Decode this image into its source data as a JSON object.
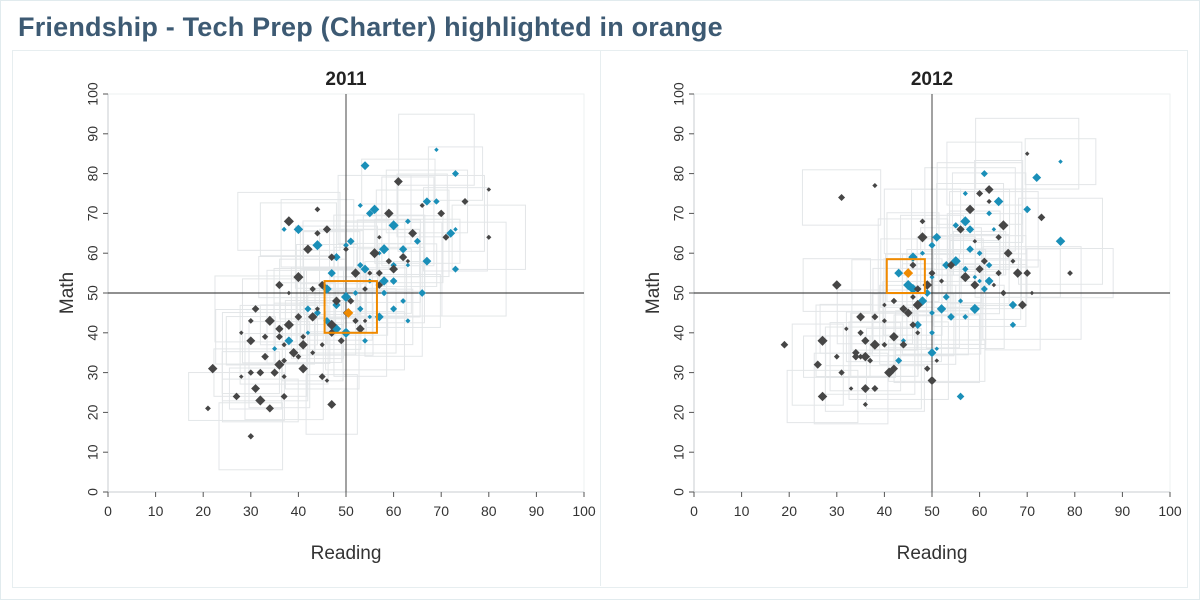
{
  "page": {
    "title": "Friendship - Tech Prep (Charter) highlighted in orange"
  },
  "colors": {
    "highlight": "#f08a00",
    "teal": "#1a8fb8",
    "dark": "#464646",
    "ghost": "#e3e6e8",
    "title": "#3d5a73"
  },
  "chart_data": [
    {
      "type": "scatter",
      "title": "2011",
      "xlabel": "Reading",
      "ylabel": "Math",
      "xlim": [
        0,
        100
      ],
      "ylim": [
        0,
        100
      ],
      "xticks": [
        "0",
        "10",
        "20",
        "30",
        "40",
        "50",
        "60",
        "70",
        "80",
        "90",
        "100"
      ],
      "yticks": [
        "0",
        "10",
        "20",
        "30",
        "40",
        "50",
        "60",
        "70",
        "80",
        "90",
        "100"
      ],
      "reference_lines": {
        "x": 50,
        "y": 50
      },
      "highlight": {
        "name": "Friendship - Tech Prep (Charter)",
        "point": [
          50.5,
          45
        ],
        "box": {
          "x": [
            45.5,
            56.5
          ],
          "y": [
            40,
            53
          ]
        }
      },
      "series": [
        {
          "group": "teal",
          "points": [
            [
              69,
              86
            ],
            [
              54,
              82
            ],
            [
              73,
              80
            ],
            [
              53,
              72
            ],
            [
              56,
              71
            ],
            [
              55,
              70
            ],
            [
              63,
              68
            ],
            [
              60,
              67
            ],
            [
              67,
              73
            ],
            [
              69,
              73
            ],
            [
              73,
              66
            ],
            [
              72,
              65
            ],
            [
              65,
              63
            ],
            [
              37,
              66
            ],
            [
              40,
              66
            ],
            [
              51,
              63
            ],
            [
              50,
              62
            ],
            [
              58,
              61
            ],
            [
              62,
              61
            ],
            [
              60,
              57
            ],
            [
              63,
              57
            ],
            [
              67,
              58
            ],
            [
              73,
              56
            ],
            [
              55,
              53
            ],
            [
              58,
              53
            ],
            [
              60,
              53
            ],
            [
              52,
              50
            ],
            [
              50,
              49
            ],
            [
              48,
              47
            ],
            [
              53,
              46
            ],
            [
              55,
              44
            ],
            [
              57,
              44
            ],
            [
              60,
              46
            ],
            [
              63,
              43
            ],
            [
              48,
              41
            ],
            [
              46,
              43
            ],
            [
              54,
              38
            ],
            [
              50,
              40
            ],
            [
              47,
              55
            ],
            [
              58,
              50
            ],
            [
              42,
              40
            ],
            [
              38,
              38
            ],
            [
              44,
              45
            ],
            [
              35,
              36
            ],
            [
              46,
              51
            ],
            [
              66,
              50
            ],
            [
              62,
              48
            ],
            [
              44,
              62
            ],
            [
              48,
              59
            ],
            [
              53,
              57
            ],
            [
              57,
              60
            ],
            [
              54,
              56
            ],
            [
              42,
              46
            ]
          ]
        },
        {
          "group": "dark",
          "points": [
            [
              80,
              76
            ],
            [
              61,
              78
            ],
            [
              75,
              73
            ],
            [
              66,
              72
            ],
            [
              59,
              70
            ],
            [
              70,
              70
            ],
            [
              44,
              71
            ],
            [
              38,
              68
            ],
            [
              46,
              66
            ],
            [
              44,
              65
            ],
            [
              57,
              64
            ],
            [
              64,
              65
            ],
            [
              71,
              64
            ],
            [
              80,
              64
            ],
            [
              42,
              61
            ],
            [
              47,
              59
            ],
            [
              50,
              61
            ],
            [
              56,
              60
            ],
            [
              62,
              59
            ],
            [
              59,
              58
            ],
            [
              63,
              58
            ],
            [
              60,
              56
            ],
            [
              57,
              55
            ],
            [
              55,
              55
            ],
            [
              52,
              55
            ],
            [
              57,
              52
            ],
            [
              54,
              51
            ],
            [
              40,
              54
            ],
            [
              36,
              52
            ],
            [
              43,
              51
            ],
            [
              38,
              50
            ],
            [
              48,
              48
            ],
            [
              51,
              48
            ],
            [
              44,
              46
            ],
            [
              43,
              44
            ],
            [
              40,
              44
            ],
            [
              41,
              39
            ],
            [
              47,
              42
            ],
            [
              47,
              40
            ],
            [
              52,
              43
            ],
            [
              54,
              43
            ],
            [
              53,
              41
            ],
            [
              49,
              38
            ],
            [
              45,
              37
            ],
            [
              41,
              37
            ],
            [
              31,
              46
            ],
            [
              30,
              43
            ],
            [
              34,
              43
            ],
            [
              36,
              41
            ],
            [
              33,
              39
            ],
            [
              28,
              40
            ],
            [
              30,
              38
            ],
            [
              36,
              39
            ],
            [
              37,
              37
            ],
            [
              39,
              35
            ],
            [
              33,
              34
            ],
            [
              40,
              34
            ],
            [
              36,
              32
            ],
            [
              35,
              30
            ],
            [
              30,
              30
            ],
            [
              28,
              29
            ],
            [
              31,
              26
            ],
            [
              37,
              24
            ],
            [
              37,
              29
            ],
            [
              22,
              31
            ],
            [
              27,
              24
            ],
            [
              21,
              21
            ],
            [
              32,
              23
            ],
            [
              34,
              21
            ],
            [
              30,
              14
            ],
            [
              46,
              28
            ],
            [
              47,
              22
            ],
            [
              45,
              29
            ],
            [
              43,
              35
            ],
            [
              41,
              31
            ],
            [
              32,
              30
            ],
            [
              37,
              33
            ],
            [
              38,
              42
            ],
            [
              45,
              52
            ],
            [
              50,
              45
            ]
          ]
        }
      ]
    },
    {
      "type": "scatter",
      "title": "2012",
      "xlabel": "Reading",
      "ylabel": "Math",
      "xlim": [
        0,
        100
      ],
      "ylim": [
        0,
        100
      ],
      "xticks": [
        "0",
        "10",
        "20",
        "30",
        "40",
        "50",
        "60",
        "70",
        "80",
        "90",
        "100"
      ],
      "yticks": [
        "0",
        "10",
        "20",
        "30",
        "40",
        "50",
        "60",
        "70",
        "80",
        "90",
        "100"
      ],
      "reference_lines": {
        "x": 50,
        "y": 50
      },
      "highlight": {
        "name": "Friendship - Tech Prep (Charter)",
        "point": [
          45,
          55
        ],
        "box": {
          "x": [
            40.5,
            48.5
          ],
          "y": [
            50,
            58.5
          ]
        }
      },
      "series": [
        {
          "group": "teal",
          "points": [
            [
              77,
              83
            ],
            [
              72,
              79
            ],
            [
              61,
              80
            ],
            [
              57,
              75
            ],
            [
              64,
              73
            ],
            [
              70,
              71
            ],
            [
              62,
              70
            ],
            [
              57,
              68
            ],
            [
              58,
              66
            ],
            [
              55,
              67
            ],
            [
              63,
              66
            ],
            [
              51,
              64
            ],
            [
              50,
              62
            ],
            [
              48,
              60
            ],
            [
              46,
              59
            ],
            [
              58,
              61
            ],
            [
              60,
              60
            ],
            [
              55,
              58
            ],
            [
              53,
              57
            ],
            [
              57,
              56
            ],
            [
              59,
              54
            ],
            [
              62,
              53
            ],
            [
              61,
              51
            ],
            [
              56,
              48
            ],
            [
              52,
              46
            ],
            [
              54,
              44
            ],
            [
              57,
              44
            ],
            [
              59,
              46
            ],
            [
              67,
              47
            ],
            [
              67,
              42
            ],
            [
              51,
              36
            ],
            [
              50,
              35
            ],
            [
              43,
              33
            ],
            [
              44,
              38
            ],
            [
              48,
              48
            ],
            [
              49,
              50
            ],
            [
              50,
              45
            ],
            [
              46,
              51
            ],
            [
              47,
              42
            ],
            [
              62,
              57
            ],
            [
              60,
              53
            ],
            [
              43,
              55
            ],
            [
              53,
              49
            ],
            [
              50,
              54
            ],
            [
              77,
              63
            ],
            [
              56,
              24
            ],
            [
              50,
              40
            ],
            [
              45,
              52
            ]
          ]
        },
        {
          "group": "dark",
          "points": [
            [
              70,
              85
            ],
            [
              62,
              76
            ],
            [
              60,
              75
            ],
            [
              62,
              73
            ],
            [
              58,
              71
            ],
            [
              73,
              69
            ],
            [
              48,
              68
            ],
            [
              65,
              67
            ],
            [
              56,
              66
            ],
            [
              64,
              64
            ],
            [
              59,
              63
            ],
            [
              66,
              60
            ],
            [
              61,
              58
            ],
            [
              67,
              58
            ],
            [
              68,
              55
            ],
            [
              70,
              55
            ],
            [
              79,
              55
            ],
            [
              57,
              54
            ],
            [
              60,
              56
            ],
            [
              64,
              55
            ],
            [
              63,
              52
            ],
            [
              59,
              52
            ],
            [
              50,
              55
            ],
            [
              52,
              53
            ],
            [
              49,
              52
            ],
            [
              47,
              51
            ],
            [
              46,
              49
            ],
            [
              47,
              47
            ],
            [
              44,
              46
            ],
            [
              42,
              48
            ],
            [
              40,
              47
            ],
            [
              45,
              45
            ],
            [
              46,
              42
            ],
            [
              47,
              40
            ],
            [
              42,
              39
            ],
            [
              44,
              37
            ],
            [
              40,
              37
            ],
            [
              38,
              37
            ],
            [
              36,
              38
            ],
            [
              35,
              40
            ],
            [
              32,
              41
            ],
            [
              35,
              44
            ],
            [
              38,
              44
            ],
            [
              40,
              43
            ],
            [
              36,
              34
            ],
            [
              34,
              34
            ],
            [
              30,
              34
            ],
            [
              27,
              38
            ],
            [
              26,
              32
            ],
            [
              31,
              30
            ],
            [
              33,
              26
            ],
            [
              36,
              26
            ],
            [
              38,
              26
            ],
            [
              36,
              22
            ],
            [
              27,
              24
            ],
            [
              19,
              37
            ],
            [
              35,
              34
            ],
            [
              41,
              30
            ],
            [
              42,
              31
            ],
            [
              49,
              31
            ],
            [
              51,
              33
            ],
            [
              50,
              28
            ],
            [
              31,
              74
            ],
            [
              38,
              77
            ],
            [
              30,
              52
            ],
            [
              34,
              35
            ],
            [
              37,
              33
            ],
            [
              48,
              64
            ],
            [
              54,
              57
            ],
            [
              65,
              50
            ],
            [
              71,
              50
            ],
            [
              69,
              47
            ],
            [
              46,
              57
            ]
          ]
        }
      ]
    }
  ]
}
